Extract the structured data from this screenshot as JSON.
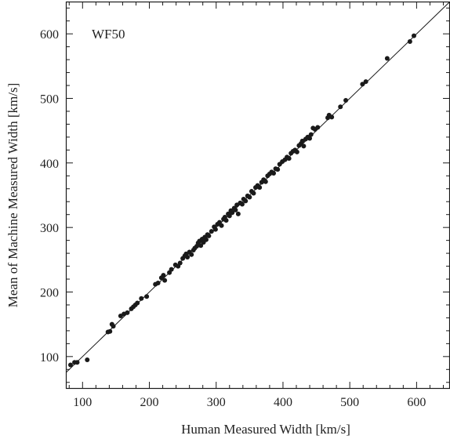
{
  "chart_data": {
    "type": "scatter",
    "annotation": "WF50",
    "xlabel": "Human Measured Width [km/s]",
    "ylabel": "Mean of Machine Measured Width [km/s]",
    "xlim": [
      75,
      650
    ],
    "ylim": [
      50,
      650
    ],
    "xticks": [
      100,
      200,
      300,
      400,
      500,
      600
    ],
    "yticks": [
      100,
      200,
      300,
      400,
      500,
      600
    ],
    "reference_line": "y = x",
    "colors": {
      "points": "#1a1a1a",
      "line": "#1a1a1a",
      "frame": "#1a1a1a"
    },
    "points": [
      [
        82,
        87
      ],
      [
        88,
        91
      ],
      [
        92,
        91
      ],
      [
        107,
        95
      ],
      [
        138,
        138
      ],
      [
        141,
        139
      ],
      [
        144,
        150
      ],
      [
        146,
        147
      ],
      [
        157,
        163
      ],
      [
        162,
        166
      ],
      [
        167,
        168
      ],
      [
        173,
        174
      ],
      [
        176,
        177
      ],
      [
        179,
        180
      ],
      [
        182,
        183
      ],
      [
        188,
        190
      ],
      [
        196,
        193
      ],
      [
        209,
        212
      ],
      [
        213,
        214
      ],
      [
        218,
        222
      ],
      [
        221,
        226
      ],
      [
        223,
        218
      ],
      [
        230,
        230
      ],
      [
        233,
        235
      ],
      [
        239,
        242
      ],
      [
        243,
        240
      ],
      [
        246,
        245
      ],
      [
        250,
        252
      ],
      [
        253,
        256
      ],
      [
        255,
        259
      ],
      [
        257,
        254
      ],
      [
        260,
        262
      ],
      [
        263,
        258
      ],
      [
        266,
        265
      ],
      [
        268,
        268
      ],
      [
        271,
        271
      ],
      [
        273,
        276
      ],
      [
        275,
        279
      ],
      [
        277,
        272
      ],
      [
        279,
        282
      ],
      [
        281,
        277
      ],
      [
        283,
        285
      ],
      [
        285,
        281
      ],
      [
        287,
        289
      ],
      [
        289,
        287
      ],
      [
        293,
        294
      ],
      [
        297,
        301
      ],
      [
        299,
        297
      ],
      [
        302,
        305
      ],
      [
        305,
        308
      ],
      [
        308,
        303
      ],
      [
        311,
        313
      ],
      [
        313,
        316
      ],
      [
        315,
        311
      ],
      [
        318,
        321
      ],
      [
        320,
        318
      ],
      [
        322,
        326
      ],
      [
        324,
        323
      ],
      [
        327,
        330
      ],
      [
        329,
        327
      ],
      [
        331,
        335
      ],
      [
        333,
        321
      ],
      [
        336,
        338
      ],
      [
        339,
        336
      ],
      [
        341,
        344
      ],
      [
        344,
        341
      ],
      [
        347,
        349
      ],
      [
        350,
        347
      ],
      [
        353,
        356
      ],
      [
        356,
        353
      ],
      [
        359,
        362
      ],
      [
        362,
        365
      ],
      [
        365,
        362
      ],
      [
        368,
        370
      ],
      [
        371,
        374
      ],
      [
        374,
        371
      ],
      [
        377,
        380
      ],
      [
        380,
        383
      ],
      [
        383,
        386
      ],
      [
        386,
        384
      ],
      [
        389,
        391
      ],
      [
        392,
        390
      ],
      [
        395,
        398
      ],
      [
        399,
        402
      ],
      [
        403,
        405
      ],
      [
        406,
        409
      ],
      [
        409,
        407
      ],
      [
        412,
        415
      ],
      [
        415,
        418
      ],
      [
        418,
        420
      ],
      [
        421,
        417
      ],
      [
        424,
        427
      ],
      [
        427,
        430
      ],
      [
        429,
        434
      ],
      [
        431,
        426
      ],
      [
        434,
        437
      ],
      [
        437,
        440
      ],
      [
        440,
        438
      ],
      [
        442,
        444
      ],
      [
        445,
        454
      ],
      [
        448,
        452
      ],
      [
        452,
        455
      ],
      [
        467,
        470
      ],
      [
        469,
        474
      ],
      [
        473,
        471
      ],
      [
        486,
        487
      ],
      [
        494,
        497
      ],
      [
        519,
        522
      ],
      [
        524,
        526
      ],
      [
        556,
        562
      ],
      [
        590,
        588
      ],
      [
        596,
        597
      ]
    ]
  }
}
